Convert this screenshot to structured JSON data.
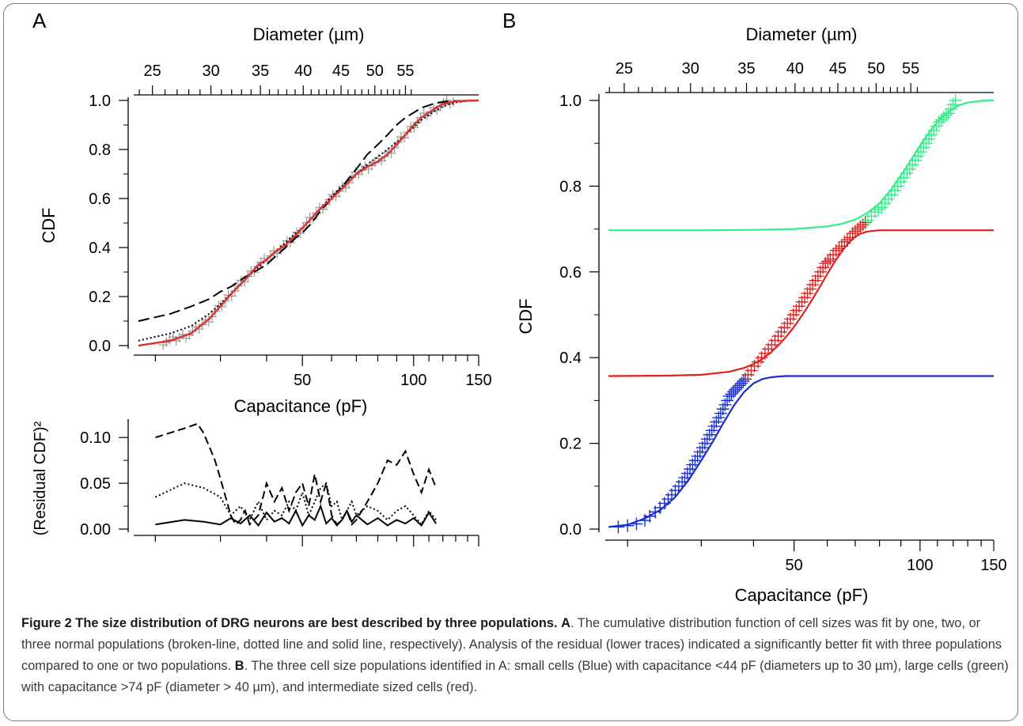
{
  "caption": {
    "title": "Figure 2 The size distribution of DRG neurons are best described by three populations.",
    "label_a": "A",
    "text_a": ". The cumulative distribution function of cell sizes was fit by one, two, or three normal populations (broken-line, dotted line and solid line, respectively). Analysis of the residual (lower traces) indicated a significantly better fit with three populations compared to one or two populations.",
    "label_b": "B",
    "text_b": ". The three cell size populations identified in A: small cells (Blue) with capacitance <44 pF (diameters up to 30 µm), large cells (green) with capacitance >74 pF (diameter > 40 µm), and intermediate sized cells (red)."
  },
  "colors": {
    "small": "#1a2fd0",
    "intermediate": "#e02020",
    "large": "#33ee88",
    "samples_a": "#999999",
    "fit_a": "#e03030"
  },
  "chart_data": [
    {
      "panel": "A",
      "type": "line",
      "panel_label": "A",
      "xlabel": "Capacitance (pF)",
      "top_axis_label": "Diameter (µm)",
      "ylabel": "CDF",
      "x_scale": "log",
      "xlim": [
        18,
        150
      ],
      "ylim": [
        0,
        1
      ],
      "xticks": [
        50,
        100,
        150
      ],
      "yticks": [
        "0.0",
        "0.2",
        "0.4",
        "0.6",
        "0.8",
        "1.0"
      ],
      "top_ticks": [
        25,
        30,
        35,
        40,
        45,
        50,
        55
      ],
      "series": [
        {
          "style": "solid",
          "x": [
            18,
            22,
            25,
            28,
            30,
            32,
            35,
            38,
            40,
            42,
            45,
            48,
            50,
            53,
            56,
            60,
            65,
            70,
            75,
            80,
            85,
            90,
            95,
            100,
            105,
            110,
            115,
            120,
            125,
            130,
            140,
            150
          ],
          "y": [
            0.0,
            0.02,
            0.05,
            0.11,
            0.16,
            0.21,
            0.27,
            0.33,
            0.35,
            0.38,
            0.41,
            0.45,
            0.48,
            0.52,
            0.56,
            0.6,
            0.65,
            0.7,
            0.73,
            0.75,
            0.78,
            0.82,
            0.86,
            0.9,
            0.93,
            0.95,
            0.97,
            0.985,
            0.992,
            0.996,
            0.999,
            1.0
          ]
        },
        {
          "style": "dotted",
          "x": [
            18,
            22,
            25,
            28,
            30,
            32,
            35,
            38,
            40,
            42,
            45,
            48,
            50,
            53,
            56,
            60,
            65,
            70,
            75,
            80,
            85,
            90,
            95,
            100,
            105,
            110,
            115,
            120,
            125,
            130,
            140,
            150
          ],
          "y": [
            0.02,
            0.05,
            0.08,
            0.13,
            0.17,
            0.21,
            0.27,
            0.32,
            0.35,
            0.38,
            0.42,
            0.46,
            0.48,
            0.52,
            0.56,
            0.61,
            0.66,
            0.7,
            0.74,
            0.77,
            0.8,
            0.83,
            0.86,
            0.89,
            0.92,
            0.94,
            0.96,
            0.975,
            0.985,
            0.992,
            0.998,
            1.0
          ]
        },
        {
          "style": "dashed",
          "x": [
            18,
            22,
            25,
            28,
            30,
            32,
            35,
            38,
            40,
            42,
            45,
            48,
            50,
            53,
            56,
            60,
            65,
            70,
            75,
            80,
            85,
            90,
            95,
            100,
            105,
            110,
            115,
            120,
            125,
            130,
            140,
            150
          ],
          "y": [
            0.1,
            0.13,
            0.16,
            0.19,
            0.22,
            0.24,
            0.28,
            0.31,
            0.33,
            0.36,
            0.4,
            0.44,
            0.46,
            0.5,
            0.55,
            0.6,
            0.66,
            0.72,
            0.78,
            0.82,
            0.86,
            0.9,
            0.93,
            0.95,
            0.97,
            0.98,
            0.99,
            0.994,
            0.997,
            0.998,
            0.999,
            1.0
          ]
        }
      ]
    },
    {
      "panel": "A-residual",
      "type": "line",
      "ylabel": "(Residual CDF)²",
      "x_scale": "log",
      "xlim": [
        18,
        150
      ],
      "ylim": [
        0,
        0.12
      ],
      "yticks": [
        "0.00",
        "0.05",
        "0.10"
      ],
      "series": [
        {
          "style": "dashed",
          "x": [
            20,
            24,
            26,
            27,
            28,
            29,
            30,
            31,
            32,
            33,
            34,
            35,
            36,
            38,
            40,
            42,
            44,
            46,
            48,
            50,
            52,
            54,
            56,
            58,
            60,
            62,
            64,
            66,
            68,
            70,
            75,
            80,
            85,
            90,
            95,
            100,
            105,
            110,
            115
          ],
          "y": [
            0.1,
            0.11,
            0.115,
            0.105,
            0.09,
            0.075,
            0.055,
            0.035,
            0.015,
            0.005,
            0.01,
            0.02,
            0.005,
            0.015,
            0.05,
            0.03,
            0.045,
            0.02,
            0.04,
            0.05,
            0.025,
            0.06,
            0.03,
            0.05,
            0.015,
            0.005,
            0.01,
            0.02,
            0.005,
            0.01,
            0.03,
            0.05,
            0.075,
            0.07,
            0.085,
            0.06,
            0.04,
            0.065,
            0.045
          ]
        },
        {
          "style": "dotted",
          "x": [
            20,
            24,
            27,
            30,
            32,
            34,
            36,
            38,
            40,
            42,
            44,
            46,
            48,
            50,
            52,
            54,
            56,
            58,
            60,
            62,
            64,
            66,
            68,
            70,
            75,
            80,
            85,
            90,
            95,
            100,
            105,
            110,
            115
          ],
          "y": [
            0.035,
            0.05,
            0.045,
            0.035,
            0.015,
            0.025,
            0.01,
            0.03,
            0.01,
            0.02,
            0.015,
            0.03,
            0.02,
            0.04,
            0.015,
            0.03,
            0.045,
            0.05,
            0.025,
            0.03,
            0.01,
            0.02,
            0.03,
            0.015,
            0.025,
            0.02,
            0.01,
            0.02,
            0.025,
            0.015,
            0.005,
            0.02,
            0.01
          ]
        },
        {
          "style": "solid",
          "x": [
            20,
            24,
            27,
            30,
            32,
            34,
            36,
            38,
            40,
            42,
            44,
            46,
            48,
            50,
            52,
            54,
            56,
            58,
            60,
            62,
            64,
            66,
            68,
            70,
            75,
            80,
            85,
            90,
            95,
            100,
            105,
            110,
            115
          ],
          "y": [
            0.005,
            0.01,
            0.008,
            0.005,
            0.012,
            0.006,
            0.015,
            0.004,
            0.018,
            0.008,
            0.012,
            0.006,
            0.02,
            0.004,
            0.015,
            0.01,
            0.025,
            0.006,
            0.012,
            0.004,
            0.01,
            0.02,
            0.008,
            0.015,
            0.005,
            0.012,
            0.004,
            0.01,
            0.006,
            0.012,
            0.004,
            0.018,
            0.006
          ]
        }
      ]
    },
    {
      "panel": "B",
      "type": "line",
      "panel_label": "B",
      "xlabel": "Capacitance (pF)",
      "top_axis_label": "Diameter (µm)",
      "ylabel": "CDF",
      "x_scale": "log",
      "xlim": [
        18,
        150
      ],
      "ylim": [
        0,
        1
      ],
      "xticks": [
        50,
        100,
        150
      ],
      "yticks": [
        "0.0",
        "0.2",
        "0.4",
        "0.6",
        "0.8",
        "1.0"
      ],
      "top_ticks": [
        25,
        30,
        35,
        40,
        45,
        50,
        55
      ],
      "series": [
        {
          "name": "small",
          "color_key": "small",
          "x": [
            18,
            20,
            22,
            24,
            26,
            28,
            30,
            32,
            34,
            36,
            38,
            40,
            42,
            44,
            46,
            48,
            50,
            55,
            60,
            70,
            80,
            100,
            120,
            150
          ],
          "y": [
            0.005,
            0.01,
            0.025,
            0.045,
            0.075,
            0.115,
            0.16,
            0.205,
            0.25,
            0.29,
            0.32,
            0.34,
            0.35,
            0.354,
            0.356,
            0.357,
            0.357,
            0.357,
            0.357,
            0.357,
            0.357,
            0.357,
            0.357,
            0.357
          ]
        },
        {
          "name": "intermediate",
          "color_key": "intermediate",
          "x": [
            18,
            25,
            30,
            35,
            38,
            40,
            42,
            44,
            46,
            48,
            50,
            52,
            54,
            56,
            58,
            60,
            62,
            64,
            66,
            68,
            70,
            72,
            74,
            76,
            80,
            90,
            100,
            150
          ],
          "y": [
            0.357,
            0.358,
            0.36,
            0.367,
            0.376,
            0.385,
            0.397,
            0.412,
            0.43,
            0.45,
            0.472,
            0.496,
            0.52,
            0.545,
            0.57,
            0.595,
            0.618,
            0.638,
            0.656,
            0.671,
            0.682,
            0.689,
            0.693,
            0.695,
            0.697,
            0.697,
            0.697,
            0.697
          ]
        },
        {
          "name": "large",
          "color_key": "large",
          "x": [
            18,
            30,
            40,
            50,
            60,
            65,
            70,
            75,
            80,
            85,
            90,
            95,
            100,
            105,
            110,
            115,
            120,
            125,
            130,
            140,
            150
          ],
          "y": [
            0.697,
            0.697,
            0.698,
            0.7,
            0.706,
            0.712,
            0.722,
            0.738,
            0.76,
            0.79,
            0.825,
            0.86,
            0.895,
            0.925,
            0.95,
            0.968,
            0.981,
            0.99,
            0.995,
            0.999,
            1.0
          ]
        }
      ],
      "samples": [
        {
          "name": "small",
          "color_key": "small",
          "x": [
            19,
            20,
            21,
            22,
            22.6,
            23.3,
            23.9,
            24.5,
            25,
            25.5,
            26,
            26.5,
            27,
            27.4,
            27.8,
            28.2,
            28.6,
            29,
            29.4,
            29.8,
            30.2,
            30.6,
            31,
            31.4,
            31.8,
            32.2,
            32.6,
            33,
            33.4,
            33.8,
            34.2,
            34.6,
            35,
            35.4,
            35.8,
            36.2,
            36.6,
            37,
            37.4,
            37.8,
            38.2
          ],
          "y": [
            0.005,
            0.008,
            0.012,
            0.02,
            0.03,
            0.04,
            0.05,
            0.06,
            0.07,
            0.08,
            0.09,
            0.1,
            0.11,
            0.12,
            0.13,
            0.14,
            0.15,
            0.16,
            0.17,
            0.18,
            0.19,
            0.2,
            0.21,
            0.22,
            0.23,
            0.24,
            0.25,
            0.26,
            0.27,
            0.28,
            0.29,
            0.3,
            0.31,
            0.315,
            0.32,
            0.325,
            0.33,
            0.335,
            0.34,
            0.345,
            0.35
          ]
        },
        {
          "name": "intermediate",
          "color_key": "intermediate",
          "x": [
            38.8,
            39.5,
            40.2,
            41,
            41.8,
            42.6,
            43.4,
            44.2,
            45,
            45.8,
            46.6,
            47.4,
            48.2,
            49,
            49.8,
            50.6,
            51.4,
            52.2,
            53,
            53.8,
            54.6,
            55.4,
            56.2,
            57,
            57.8,
            58.6,
            59.4,
            60.2,
            61,
            62,
            63,
            64,
            65,
            66,
            67,
            68,
            69,
            70,
            71,
            72,
            73,
            74
          ],
          "y": [
            0.36,
            0.37,
            0.38,
            0.39,
            0.4,
            0.41,
            0.42,
            0.43,
            0.44,
            0.45,
            0.46,
            0.47,
            0.48,
            0.49,
            0.5,
            0.51,
            0.52,
            0.53,
            0.54,
            0.55,
            0.56,
            0.57,
            0.58,
            0.59,
            0.6,
            0.61,
            0.62,
            0.625,
            0.63,
            0.64,
            0.65,
            0.655,
            0.66,
            0.67,
            0.675,
            0.68,
            0.69,
            0.695,
            0.7,
            0.705,
            0.71,
            0.715
          ]
        },
        {
          "name": "large",
          "color_key": "large",
          "x": [
            75,
            76.5,
            78,
            79.5,
            81,
            82.5,
            84,
            85.5,
            87,
            88.5,
            90,
            91.5,
            93,
            94.5,
            96,
            97.5,
            99,
            100.5,
            102,
            103.5,
            105,
            106.5,
            108,
            109.5,
            111,
            112.5,
            114,
            115.5,
            117,
            118.5,
            120,
            121.5
          ],
          "y": [
            0.72,
            0.73,
            0.74,
            0.745,
            0.75,
            0.76,
            0.77,
            0.78,
            0.79,
            0.8,
            0.81,
            0.82,
            0.83,
            0.84,
            0.85,
            0.86,
            0.87,
            0.88,
            0.89,
            0.9,
            0.91,
            0.92,
            0.93,
            0.94,
            0.95,
            0.955,
            0.96,
            0.965,
            0.97,
            0.98,
            0.99,
            1.0
          ]
        }
      ]
    }
  ]
}
